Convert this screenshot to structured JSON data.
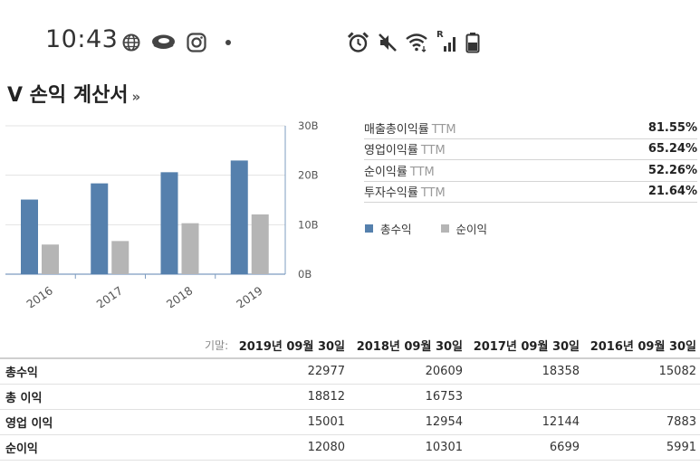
{
  "status_bar": {
    "time": "10:43",
    "left_icons": [
      "globe-icon",
      "cloud-icon",
      "instagram-icon",
      "dot-icon"
    ],
    "right_icons": [
      "alarm-icon",
      "mute-icon",
      "wifi-icon",
      "signal-roaming-icon",
      "battery-icon"
    ],
    "roaming_label": "R"
  },
  "page": {
    "title": "V 손익 계산서",
    "title_chevron": "»"
  },
  "chart_data": {
    "type": "bar",
    "categories": [
      "2016",
      "2017",
      "2018",
      "2019"
    ],
    "series": [
      {
        "name": "총수익",
        "values": [
          15082,
          18358,
          20609,
          22977
        ],
        "color": "#5580ad"
      },
      {
        "name": "순이익",
        "values": [
          5991,
          6699,
          10301,
          12080
        ],
        "color": "#b5b5b5"
      }
    ],
    "yticks": [
      "0B",
      "10B",
      "20B",
      "30B"
    ],
    "ylim": [
      0,
      30000
    ],
    "grid": true,
    "legend_position": "right"
  },
  "ratios": [
    {
      "name": "매출총이익률",
      "suffix": "TTM",
      "value": "81.55%"
    },
    {
      "name": "영업이익률",
      "suffix": "TTM",
      "value": "65.24%"
    },
    {
      "name": "순이익률",
      "suffix": "TTM",
      "value": "52.26%"
    },
    {
      "name": "투자수익률",
      "suffix": "TTM",
      "value": "21.64%"
    }
  ],
  "table": {
    "period_label": "기말:",
    "columns": [
      "2019년 09월 30일",
      "2018년 09월 30일",
      "2017년 09월 30일",
      "2016년 09월 30일"
    ],
    "rows": [
      {
        "label": "총수익",
        "values": [
          "22977",
          "20609",
          "18358",
          "15082"
        ]
      },
      {
        "label": "총 이익",
        "values": [
          "18812",
          "16753",
          "",
          ""
        ]
      },
      {
        "label": "영업 이익",
        "values": [
          "15001",
          "12954",
          "12144",
          "7883"
        ]
      },
      {
        "label": "순이익",
        "values": [
          "12080",
          "10301",
          "6699",
          "5991"
        ]
      }
    ]
  }
}
